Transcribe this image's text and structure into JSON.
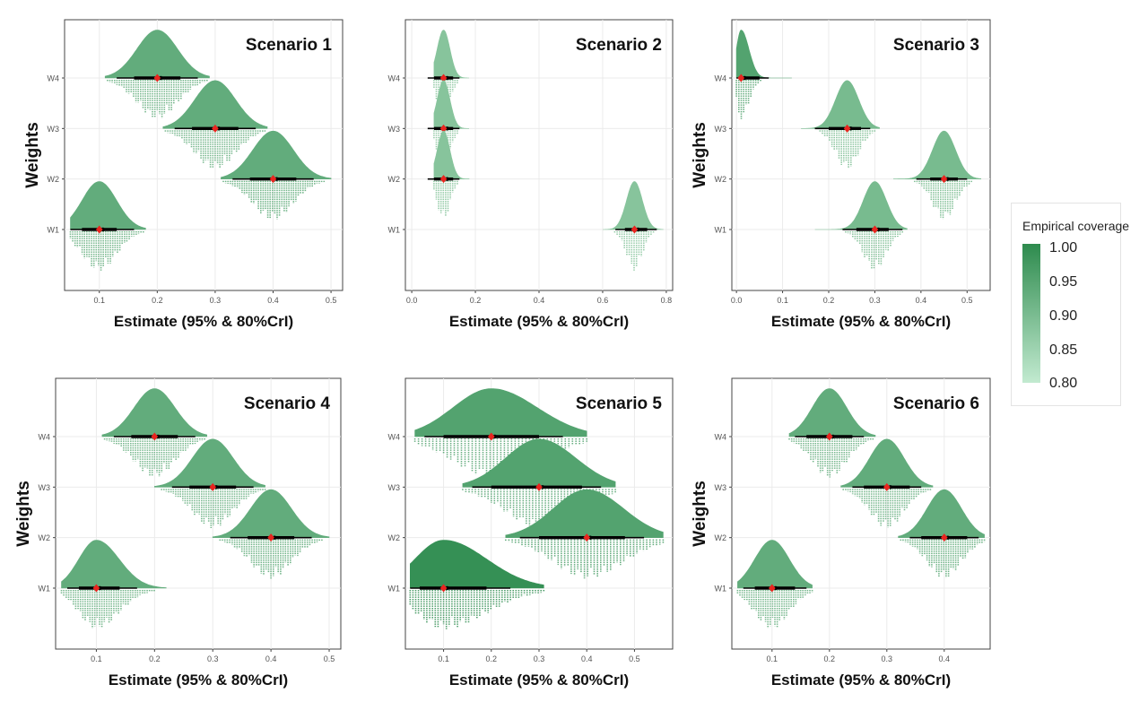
{
  "legend": {
    "title": "Empirical coverage",
    "ticks": [
      "1.00",
      "0.95",
      "0.90",
      "0.85",
      "0.80"
    ],
    "color_high": "#2e8b4e",
    "color_low": "#c2ead0"
  },
  "chart_data": [
    {
      "type": "density-ridgeline",
      "title": "Scenario 1",
      "xlabel": "Estimate (95% & 80%CrI)",
      "ylabel": "Weights",
      "xlim": [
        0.04,
        0.52
      ],
      "xticks": [
        "0.1",
        "0.2",
        "0.3",
        "0.4",
        "0.5"
      ],
      "xtick_values": [
        0.1,
        0.2,
        0.3,
        0.4,
        0.5
      ],
      "categories": [
        "W4",
        "W3",
        "W2",
        "W1"
      ],
      "series": [
        {
          "category": "W4",
          "estimate": 0.2,
          "ci95": [
            0.13,
            0.27
          ],
          "ci80": [
            0.16,
            0.24
          ],
          "range": [
            0.11,
            0.29
          ],
          "sd": 0.035,
          "skew": 0,
          "coverage": 0.93
        },
        {
          "category": "W3",
          "estimate": 0.3,
          "ci95": [
            0.23,
            0.37
          ],
          "ci80": [
            0.26,
            0.34
          ],
          "range": [
            0.21,
            0.39
          ],
          "sd": 0.035,
          "skew": 0,
          "coverage": 0.93
        },
        {
          "category": "W2",
          "estimate": 0.4,
          "ci95": [
            0.33,
            0.47
          ],
          "ci80": [
            0.36,
            0.44
          ],
          "range": [
            0.31,
            0.5
          ],
          "sd": 0.035,
          "skew": 0,
          "coverage": 0.93
        },
        {
          "category": "W1",
          "estimate": 0.1,
          "ci95": [
            0.05,
            0.16
          ],
          "ci80": [
            0.07,
            0.13
          ],
          "range": [
            0.05,
            0.18
          ],
          "sd": 0.03,
          "skew": 0,
          "coverage": 0.93
        }
      ]
    },
    {
      "type": "density-ridgeline",
      "title": "Scenario 2",
      "xlabel": "Estimate (95% & 80%CrI)",
      "ylabel": "",
      "xlim": [
        -0.02,
        0.82
      ],
      "xticks": [
        "0.0",
        "0.2",
        "0.4",
        "0.6",
        "0.8"
      ],
      "xtick_values": [
        0.0,
        0.2,
        0.4,
        0.6,
        0.8
      ],
      "categories": [
        "W4",
        "W3",
        "W2",
        "W1"
      ],
      "series": [
        {
          "category": "W4",
          "estimate": 0.1,
          "ci95": [
            0.05,
            0.15
          ],
          "ci80": [
            0.07,
            0.13
          ],
          "range": [
            0.07,
            0.18
          ],
          "sd": 0.02,
          "skew": 0,
          "coverage": 0.88
        },
        {
          "category": "W3",
          "estimate": 0.1,
          "ci95": [
            0.05,
            0.15
          ],
          "ci80": [
            0.07,
            0.13
          ],
          "range": [
            0.07,
            0.18
          ],
          "sd": 0.02,
          "skew": 0,
          "coverage": 0.88
        },
        {
          "category": "W2",
          "estimate": 0.1,
          "ci95": [
            0.05,
            0.15
          ],
          "ci80": [
            0.07,
            0.13
          ],
          "range": [
            0.07,
            0.18
          ],
          "sd": 0.02,
          "skew": 0,
          "coverage": 0.88
        },
        {
          "category": "W1",
          "estimate": 0.7,
          "ci95": [
            0.64,
            0.77
          ],
          "ci80": [
            0.67,
            0.74
          ],
          "range": [
            0.6,
            0.79
          ],
          "sd": 0.025,
          "skew": 0,
          "coverage": 0.88
        }
      ]
    },
    {
      "type": "density-ridgeline",
      "title": "Scenario 3",
      "xlabel": "Estimate (95% & 80%CrI)",
      "ylabel": "Weights",
      "xlim": [
        -0.01,
        0.55
      ],
      "xticks": [
        "0.0",
        "0.1",
        "0.2",
        "0.3",
        "0.4",
        "0.5"
      ],
      "xtick_values": [
        0.0,
        0.1,
        0.2,
        0.3,
        0.4,
        0.5
      ],
      "categories": [
        "W4",
        "W3",
        "W2",
        "W1"
      ],
      "series": [
        {
          "category": "W4",
          "estimate": 0.01,
          "ci95": [
            0.0,
            0.07
          ],
          "ci80": [
            0.005,
            0.05
          ],
          "range": [
            0.0,
            0.12
          ],
          "sd": 0.01,
          "skew": 0.7,
          "coverage": 0.95
        },
        {
          "category": "W3",
          "estimate": 0.24,
          "ci95": [
            0.17,
            0.29
          ],
          "ci80": [
            0.2,
            0.27
          ],
          "range": [
            0.14,
            0.31
          ],
          "sd": 0.025,
          "skew": 0,
          "coverage": 0.9
        },
        {
          "category": "W2",
          "estimate": 0.45,
          "ci95": [
            0.39,
            0.5
          ],
          "ci80": [
            0.42,
            0.48
          ],
          "range": [
            0.34,
            0.53
          ],
          "sd": 0.025,
          "skew": 0,
          "coverage": 0.9
        },
        {
          "category": "W1",
          "estimate": 0.3,
          "ci95": [
            0.23,
            0.36
          ],
          "ci80": [
            0.26,
            0.33
          ],
          "range": [
            0.17,
            0.37
          ],
          "sd": 0.025,
          "skew": 0,
          "coverage": 0.9
        }
      ]
    },
    {
      "type": "density-ridgeline",
      "title": "Scenario 4",
      "xlabel": "Estimate (95% & 80%CrI)",
      "ylabel": "Weights",
      "xlim": [
        0.03,
        0.52
      ],
      "xticks": [
        "0.1",
        "0.2",
        "0.3",
        "0.4",
        "0.5"
      ],
      "xtick_values": [
        0.1,
        0.2,
        0.3,
        0.4,
        0.5
      ],
      "categories": [
        "W4",
        "W3",
        "W2",
        "W1"
      ],
      "series": [
        {
          "category": "W4",
          "estimate": 0.2,
          "ci95": [
            0.13,
            0.27
          ],
          "ci80": [
            0.16,
            0.24
          ],
          "range": [
            0.11,
            0.29
          ],
          "sd": 0.035,
          "skew": 0,
          "coverage": 0.93
        },
        {
          "category": "W3",
          "estimate": 0.3,
          "ci95": [
            0.23,
            0.37
          ],
          "ci80": [
            0.26,
            0.34
          ],
          "range": [
            0.2,
            0.39
          ],
          "sd": 0.035,
          "skew": 0,
          "coverage": 0.93
        },
        {
          "category": "W2",
          "estimate": 0.4,
          "ci95": [
            0.33,
            0.47
          ],
          "ci80": [
            0.36,
            0.44
          ],
          "range": [
            0.3,
            0.5
          ],
          "sd": 0.035,
          "skew": 0,
          "coverage": 0.93
        },
        {
          "category": "W1",
          "estimate": 0.1,
          "ci95": [
            0.05,
            0.17
          ],
          "ci80": [
            0.07,
            0.14
          ],
          "range": [
            0.04,
            0.22
          ],
          "sd": 0.03,
          "skew": 0.3,
          "coverage": 0.93
        }
      ]
    },
    {
      "type": "density-ridgeline",
      "title": "Scenario 5",
      "xlabel": "Estimate (95% & 80%CrI)",
      "ylabel": "",
      "xlim": [
        0.02,
        0.58
      ],
      "xticks": [
        "0.1",
        "0.2",
        "0.3",
        "0.4",
        "0.5"
      ],
      "xtick_values": [
        0.1,
        0.2,
        0.3,
        0.4,
        0.5
      ],
      "categories": [
        "W4",
        "W3",
        "W2",
        "W1"
      ],
      "series": [
        {
          "category": "W4",
          "estimate": 0.2,
          "ci95": [
            0.06,
            0.35
          ],
          "ci80": [
            0.1,
            0.3
          ],
          "range": [
            0.04,
            0.4
          ],
          "sd": 0.08,
          "skew": 0.2,
          "coverage": 0.95
        },
        {
          "category": "W3",
          "estimate": 0.3,
          "ci95": [
            0.16,
            0.43
          ],
          "ci80": [
            0.2,
            0.39
          ],
          "range": [
            0.14,
            0.46
          ],
          "sd": 0.07,
          "skew": 0.1,
          "coverage": 0.95
        },
        {
          "category": "W2",
          "estimate": 0.4,
          "ci95": [
            0.26,
            0.52
          ],
          "ci80": [
            0.3,
            0.48
          ],
          "range": [
            0.23,
            0.56
          ],
          "sd": 0.07,
          "skew": 0.1,
          "coverage": 0.95
        },
        {
          "category": "W1",
          "estimate": 0.1,
          "ci95": [
            0.03,
            0.24
          ],
          "ci80": [
            0.05,
            0.19
          ],
          "range": [
            0.03,
            0.31
          ],
          "sd": 0.06,
          "skew": 0.5,
          "coverage": 0.99
        }
      ]
    },
    {
      "type": "density-ridgeline",
      "title": "Scenario 6",
      "xlabel": "Estimate (95% & 80%CrI)",
      "ylabel": "Weights",
      "xlim": [
        0.03,
        0.48
      ],
      "xticks": [
        "0.1",
        "0.2",
        "0.3",
        "0.4"
      ],
      "xtick_values": [
        0.1,
        0.2,
        0.3,
        0.4
      ],
      "categories": [
        "W4",
        "W3",
        "W2",
        "W1"
      ],
      "series": [
        {
          "category": "W4",
          "estimate": 0.2,
          "ci95": [
            0.14,
            0.26
          ],
          "ci80": [
            0.16,
            0.24
          ],
          "range": [
            0.13,
            0.28
          ],
          "sd": 0.03,
          "skew": 0,
          "coverage": 0.93
        },
        {
          "category": "W3",
          "estimate": 0.3,
          "ci95": [
            0.24,
            0.36
          ],
          "ci80": [
            0.26,
            0.34
          ],
          "range": [
            0.22,
            0.38
          ],
          "sd": 0.03,
          "skew": 0,
          "coverage": 0.93
        },
        {
          "category": "W2",
          "estimate": 0.4,
          "ci95": [
            0.34,
            0.46
          ],
          "ci80": [
            0.36,
            0.44
          ],
          "range": [
            0.32,
            0.47
          ],
          "sd": 0.03,
          "skew": 0,
          "coverage": 0.93
        },
        {
          "category": "W1",
          "estimate": 0.1,
          "ci95": [
            0.05,
            0.16
          ],
          "ci80": [
            0.07,
            0.14
          ],
          "range": [
            0.04,
            0.17
          ],
          "sd": 0.03,
          "skew": 0,
          "coverage": 0.93
        }
      ]
    }
  ]
}
